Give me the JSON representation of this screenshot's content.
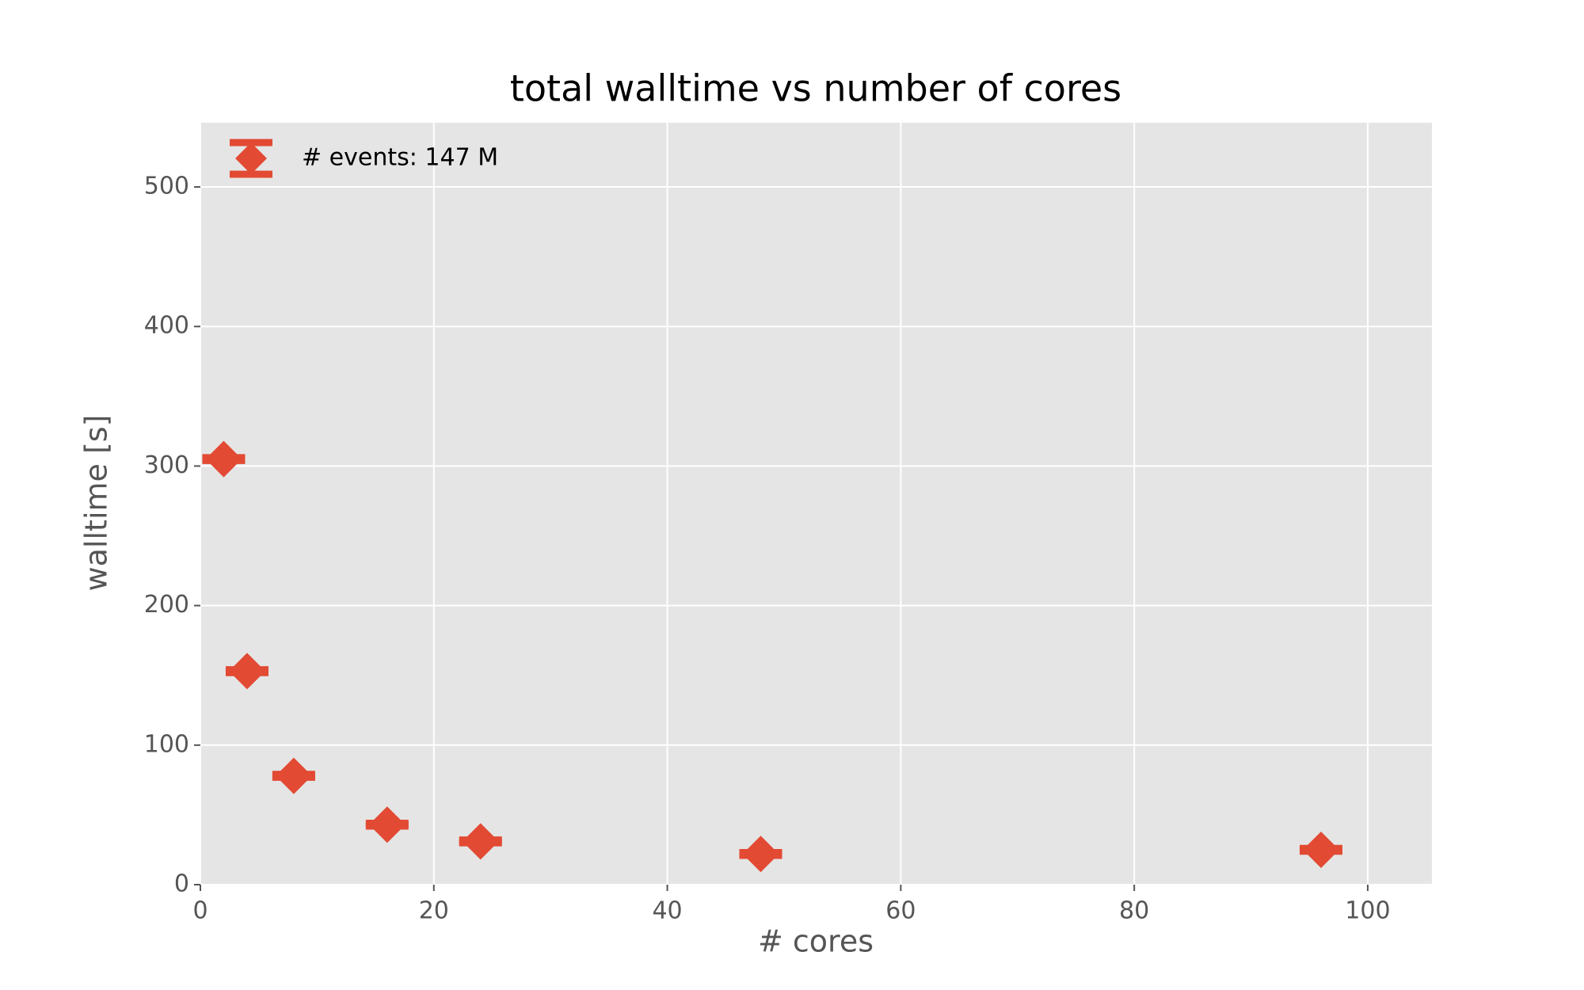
{
  "chart_data": {
    "type": "errorbar",
    "title": "total walltime vs number of cores",
    "xlabel": "# cores",
    "ylabel": "walltime [s]",
    "x": [
      2,
      4,
      8,
      16,
      24,
      48,
      96
    ],
    "series": [
      {
        "name": "# events: 147 M",
        "color": "#e24a33",
        "values": [
          305,
          153,
          78,
          43,
          31,
          22,
          25
        ],
        "errors": [
          1,
          1,
          1,
          1,
          1,
          1,
          1
        ]
      }
    ],
    "xlim": [
      0,
      105.5
    ],
    "ylim": [
      0,
      546
    ],
    "xticks": [
      0,
      20,
      40,
      60,
      80,
      100
    ],
    "yticks": [
      0,
      100,
      200,
      300,
      400,
      500
    ],
    "grid": true,
    "legend": "upper left"
  }
}
